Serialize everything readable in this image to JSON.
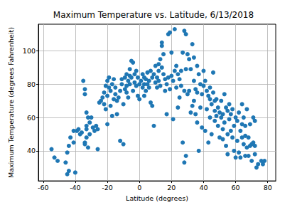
{
  "chart_data": {
    "type": "scatter",
    "title": "Maximum Temperature vs. Latitude, 6/13/2018",
    "x_label": "Latitude (degrees)",
    "y_label": "Maximum Temperature (degrees Fahrenheit)",
    "color": "#1f77b4",
    "marker": "circle",
    "grid": true,
    "xlim": [
      -63,
      85
    ],
    "ylim": [
      22,
      116
    ],
    "xticks": [
      -60,
      -40,
      -20,
      0,
      20,
      40,
      60,
      80
    ],
    "yticks": [
      40,
      60,
      80,
      100
    ],
    "x": [
      -54.8,
      -53,
      -51,
      -46,
      -45,
      -44,
      -45,
      -44,
      -43,
      -41,
      -40,
      -41,
      -39,
      -38,
      -37,
      -36,
      -35,
      -34,
      -34,
      -34,
      -33,
      -33,
      -33,
      -32,
      -32,
      -31,
      -30,
      -29,
      -28,
      -27,
      -26,
      -26,
      -25,
      -24,
      -34,
      -33,
      -31,
      -23,
      -22,
      -21,
      -21,
      -20,
      -20,
      -19,
      -19,
      -18,
      -18,
      -17,
      -17,
      -16,
      -16,
      -15,
      -15,
      -14,
      -14,
      -13,
      -12,
      -12,
      -11,
      -11,
      -10,
      -10,
      -22,
      -20,
      -9,
      -9,
      -8,
      -8,
      -7,
      -7,
      -6,
      -6,
      -5,
      -5,
      -4,
      -4,
      -3,
      -3,
      -2,
      -2,
      -1,
      -1,
      0,
      0,
      -8,
      -6,
      1,
      2,
      2,
      3,
      3,
      4,
      4,
      5,
      6,
      6,
      7,
      7,
      8,
      8,
      9,
      9,
      10,
      10,
      5,
      3,
      11,
      11,
      12,
      12,
      13,
      13,
      14,
      14,
      15,
      15,
      16,
      16,
      17,
      17,
      18,
      18,
      19,
      19,
      20,
      20,
      12,
      14,
      21,
      21,
      22,
      22,
      23,
      23,
      24,
      24,
      25,
      25,
      26,
      26,
      27,
      27,
      28,
      28,
      29,
      29,
      30,
      30,
      28,
      29,
      31,
      31,
      32,
      32,
      33,
      33,
      34,
      34,
      35,
      35,
      36,
      36,
      37,
      37,
      38,
      38,
      39,
      39,
      40,
      40,
      34,
      36,
      41,
      41,
      42,
      42,
      43,
      43,
      44,
      44,
      45,
      45,
      46,
      46,
      47,
      47,
      48,
      48,
      49,
      49,
      50,
      50,
      44,
      47,
      51,
      51,
      52,
      52,
      53,
      53,
      54,
      54,
      55,
      55,
      56,
      56,
      57,
      57,
      58,
      58,
      59,
      59,
      60,
      60,
      52,
      55,
      61,
      61,
      62,
      62,
      63,
      63,
      64,
      64,
      65,
      65,
      66,
      66,
      67,
      67,
      68,
      68,
      69,
      69,
      70,
      70,
      64,
      66,
      71,
      71,
      72,
      72,
      73,
      74,
      76,
      77,
      78,
      72
    ],
    "values": [
      41,
      36,
      34,
      33,
      26,
      28,
      39,
      43,
      48,
      45,
      27,
      52,
      52,
      53,
      50,
      51,
      82,
      77,
      74,
      45,
      48,
      55,
      53,
      42,
      60,
      57,
      60,
      54,
      52,
      55,
      41,
      53,
      69,
      70,
      44,
      63,
      50,
      72,
      75,
      79,
      65,
      73,
      56,
      78,
      84,
      76,
      67,
      61,
      80,
      71,
      83,
      74,
      78,
      70,
      62,
      72,
      46,
      76,
      80,
      83,
      44,
      68,
      68,
      82,
      84,
      77,
      86,
      79,
      82,
      72,
      89,
      80,
      94,
      84,
      93,
      76,
      86,
      81,
      88,
      79,
      73,
      84,
      71,
      80,
      75,
      85,
      82,
      78,
      86,
      84,
      80,
      83,
      76,
      87,
      82,
      78,
      88,
      69,
      84,
      67,
      55,
      86,
      81,
      91,
      80,
      73,
      84,
      78,
      88,
      82,
      95,
      79,
      103,
      105,
      98,
      86,
      83,
      76,
      62,
      80,
      110,
      84,
      111,
      77,
      99,
      85,
      92,
      90,
      59,
      82,
      113,
      88,
      91,
      78,
      86,
      66,
      83,
      72,
      79,
      88,
      99,
      45,
      112,
      33,
      110,
      37,
      98,
      74,
      76,
      89,
      95,
      76,
      89,
      63,
      104,
      67,
      96,
      82,
      77,
      62,
      91,
      57,
      86,
      40,
      80,
      66,
      74,
      54,
      79,
      88,
      70,
      75,
      82,
      52,
      76,
      65,
      73,
      45,
      71,
      60,
      68,
      50,
      87,
      75,
      64,
      58,
      71,
      61,
      66,
      55,
      63,
      48,
      78,
      70,
      70,
      60,
      62,
      47,
      74,
      57,
      66,
      43,
      64,
      38,
      59,
      68,
      52,
      62,
      48,
      65,
      55,
      40,
      60,
      36,
      53,
      50,
      58,
      46,
      63,
      39,
      52,
      36,
      48,
      68,
      44,
      60,
      37,
      55,
      65,
      42,
      48,
      37,
      43,
      56,
      34,
      44,
      56,
      49,
      60,
      45,
      38,
      58,
      30,
      32,
      34,
      32,
      34,
      43
    ]
  }
}
